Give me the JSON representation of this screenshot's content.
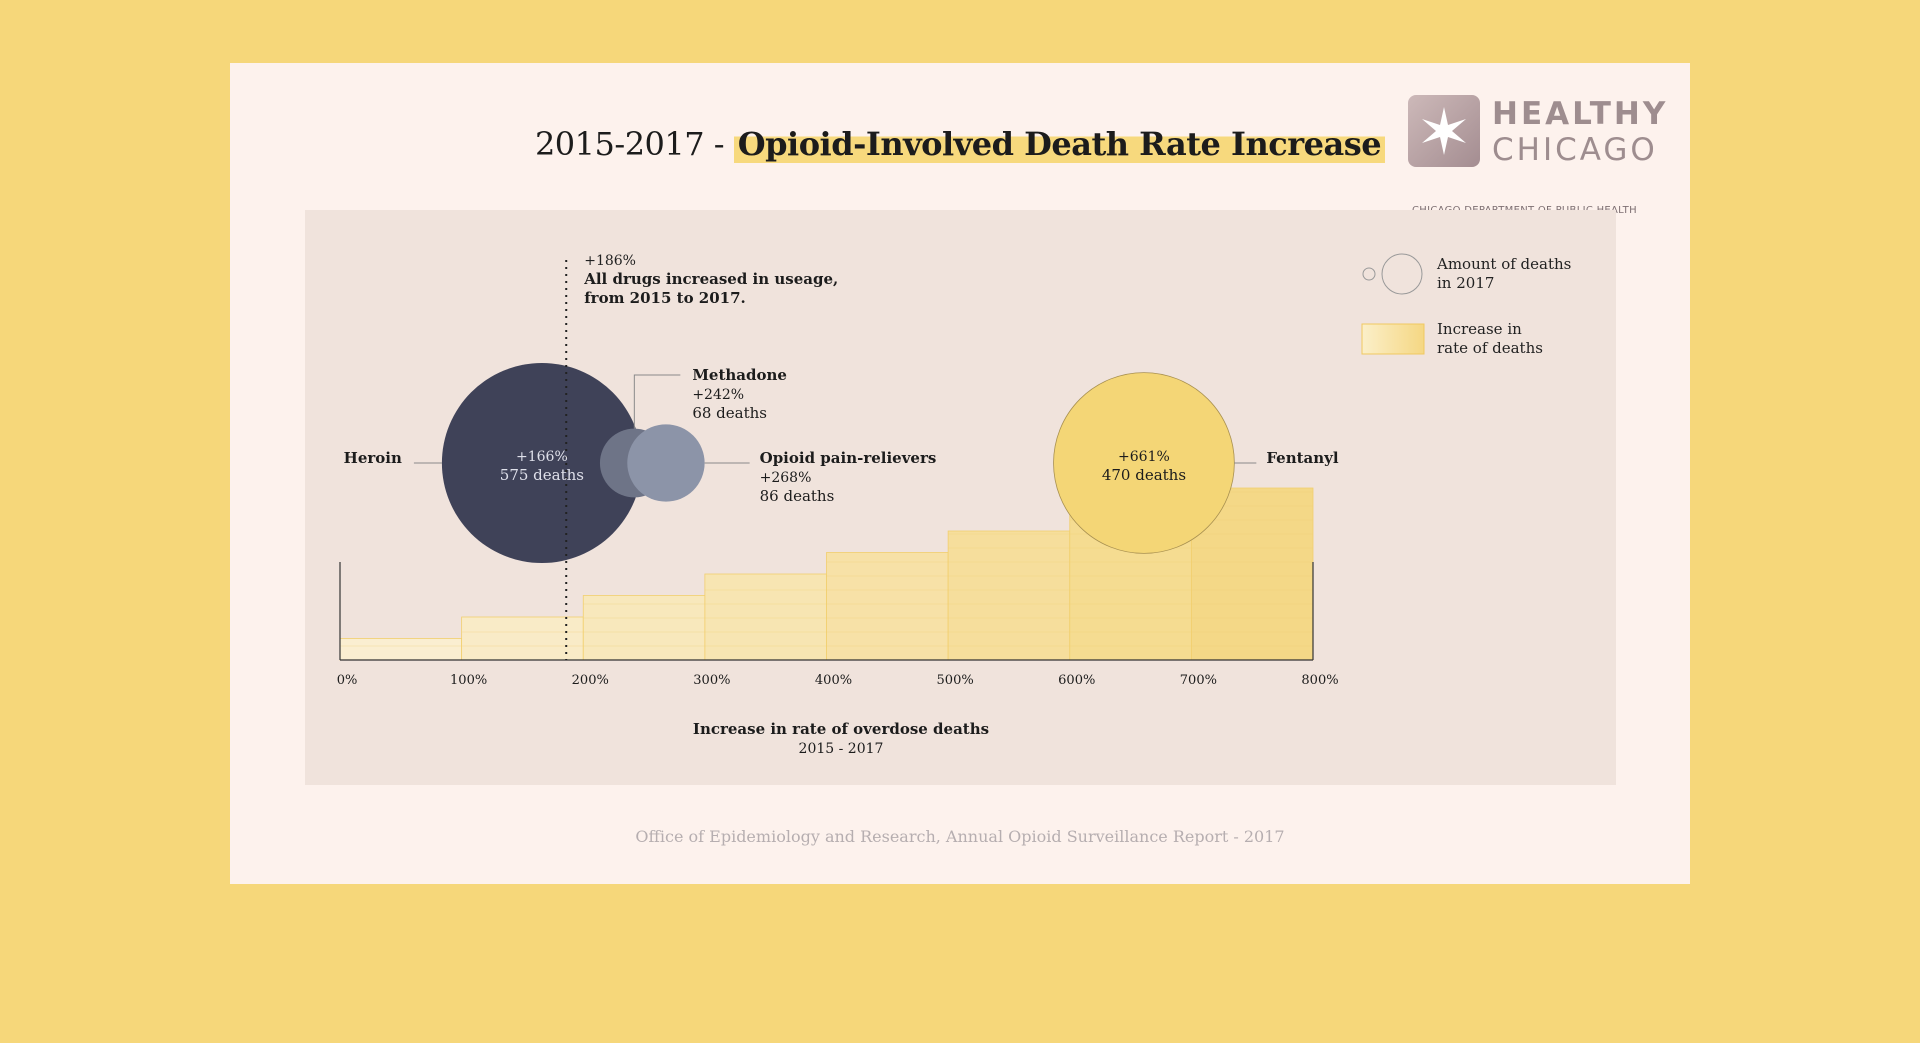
{
  "title": {
    "prefix": "2015-2017 - ",
    "highlight": "Opioid-Involved Death Rate Increase"
  },
  "logo": {
    "line1": "HEALTHY",
    "line2": "CHICAGO",
    "line3": "CHICAGO DEPARTMENT OF PUBLIC HEALTH",
    "icon": "star-icon"
  },
  "source": "Office of Epidemiology and Research, Annual Opioid Surveillance Report - 2017",
  "colors": {
    "background": "#f6d77a",
    "card": "#fdf2ed",
    "panel": "#f0e3dc",
    "heroin": "#3f4258",
    "methadone": "#6e7487",
    "painrelievers": "#8c94a8",
    "fentanyl": "#f4d676"
  },
  "chart_data": {
    "type": "scatter",
    "xlabel": "Increase in rate of overdose deaths",
    "xsublabel": "2015 - 2017",
    "xlim": [
      0,
      800
    ],
    "xticks": [
      "0%",
      "100%",
      "200%",
      "300%",
      "400%",
      "500%",
      "600%",
      "700%",
      "800%"
    ],
    "reference_line": {
      "value": 186,
      "label_value": "+186%",
      "label_line1": "All drugs increased in useage,",
      "label_line2": "from 2015 to 2017."
    },
    "series": [
      {
        "name": "Heroin",
        "increase": 166,
        "increase_label": "+166%",
        "deaths": 575,
        "deaths_label": "575 deaths",
        "label_position": "left"
      },
      {
        "name": "Methadone",
        "increase": 242,
        "increase_label": "+242%",
        "deaths": 68,
        "deaths_label": "68 deaths",
        "label_position": "top"
      },
      {
        "name": "Opioid pain-relievers",
        "increase": 268,
        "increase_label": "+268%",
        "deaths": 86,
        "deaths_label": "86 deaths",
        "label_position": "right"
      },
      {
        "name": "Fentanyl",
        "increase": 661,
        "increase_label": "+661%",
        "deaths": 470,
        "deaths_label": "470 deaths",
        "label_position": "right"
      }
    ],
    "legend": {
      "bubble_label_1": "Amount of deaths",
      "bubble_label_2": "in 2017",
      "bar_label_1": "Increase in",
      "bar_label_2": "rate of deaths",
      "position": "top-right"
    },
    "grid": false
  }
}
